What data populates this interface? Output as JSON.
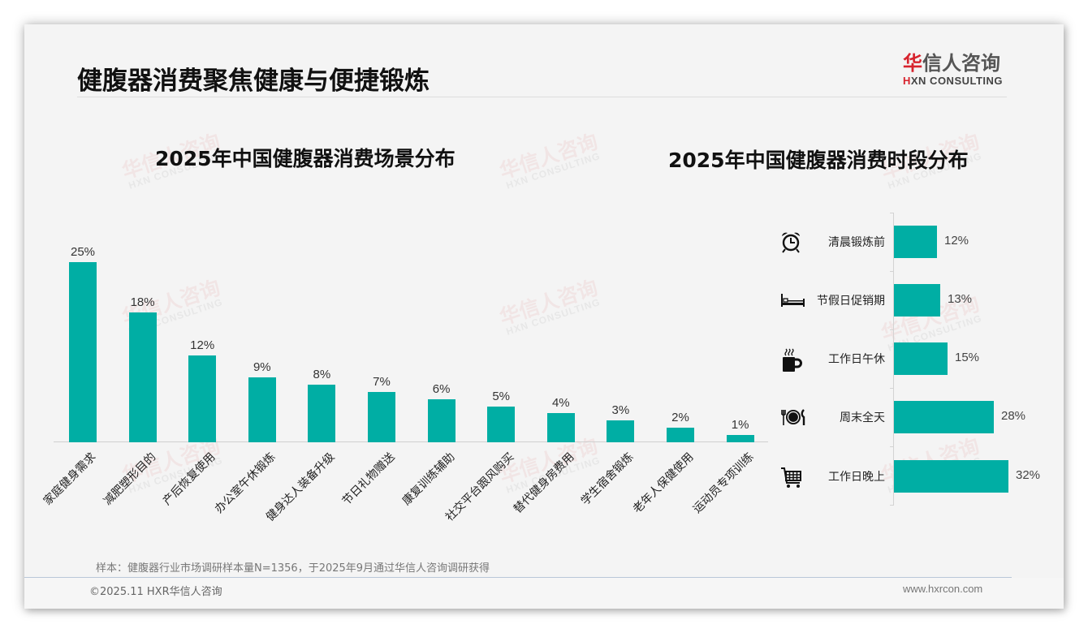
{
  "header": {
    "title": "健腹器消费聚焦健康与便捷锻炼",
    "logo": {
      "cn_mark": "华",
      "cn_rest": "信人咨询",
      "en_mark": "H",
      "en_rest": "XN CONSULTING"
    }
  },
  "watermark": {
    "cn": "华信人咨询",
    "en": "HXN CONSULTING"
  },
  "colors": {
    "bar": "#00aea4",
    "brand_red": "#d7232d",
    "background": "#f4f4f4"
  },
  "chart_data": [
    {
      "type": "bar",
      "title": "2025年中国健腹器消费场景分布",
      "categories": [
        "家庭健身需求",
        "减肥塑形目的",
        "产后恢复使用",
        "办公室午休锻炼",
        "健身达人装备升级",
        "节日礼物赠送",
        "康复训练辅助",
        "社交平台跟风购买",
        "替代健身房费用",
        "学生宿舍锻炼",
        "老年人保健使用",
        "运动员专项训练"
      ],
      "values": [
        25,
        18,
        12,
        9,
        8,
        7,
        6,
        5,
        4,
        3,
        2,
        1
      ],
      "labels": [
        "25%",
        "18%",
        "12%",
        "9%",
        "8%",
        "7%",
        "6%",
        "5%",
        "4%",
        "3%",
        "2%",
        "1%"
      ],
      "xlabel": "",
      "ylabel": "",
      "ylim": [
        0,
        25
      ],
      "grid": false,
      "legend": "none",
      "x_tick_rotation": -45
    },
    {
      "type": "bar",
      "orientation": "horizontal",
      "title": "2025年中国健腹器消费时段分布",
      "categories": [
        "清晨锻炼前",
        "节假日促销期",
        "工作日午休",
        "周末全天",
        "工作日晚上"
      ],
      "values": [
        12,
        13,
        15,
        28,
        32
      ],
      "labels": [
        "12%",
        "13%",
        "15%",
        "28%",
        "32%"
      ],
      "icons": [
        "alarm-clock-icon",
        "bed-icon",
        "coffee-cup-icon",
        "dining-plate-icon",
        "shopping-cart-icon"
      ],
      "xlabel": "",
      "ylabel": "",
      "xlim": [
        0,
        32
      ],
      "grid": false,
      "legend": "none"
    }
  ],
  "footer": {
    "note": "样本：健腹器行业市场调研样本量N=1356，于2025年9月通过华信人咨询调研获得",
    "copyright": "©2025.11 HXR华信人咨询",
    "website": "www.hxrcon.com"
  }
}
